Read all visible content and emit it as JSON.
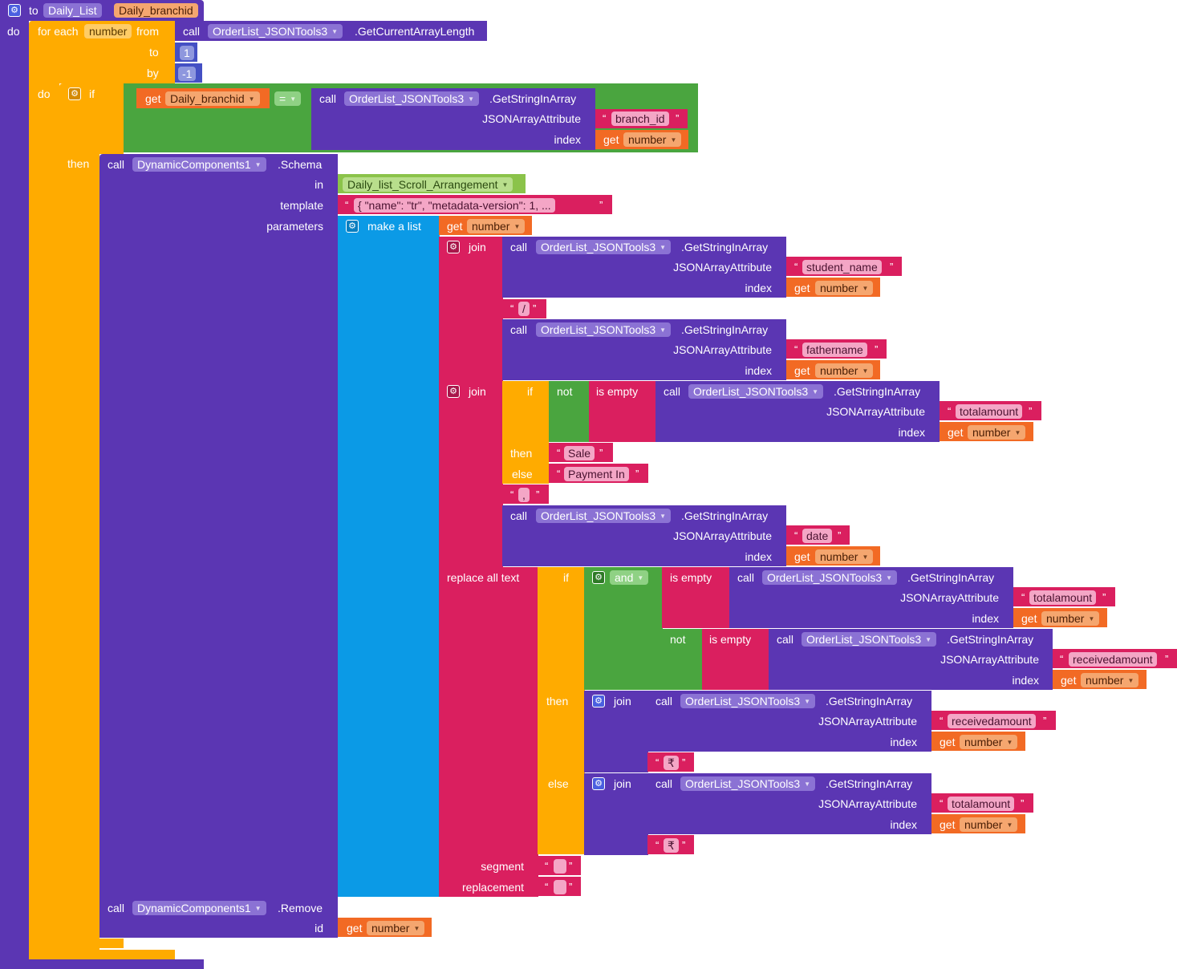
{
  "colors": {
    "procedure": "#5b36b3",
    "control": "#ffab00",
    "logic": "#4aa53f",
    "text": "#da1f5f",
    "variable": "#f26a24",
    "lists": "#0b9ae6",
    "math": "#4450c4",
    "component": "#5e35b1",
    "layout": "#8bc34a"
  },
  "procedure": {
    "keyword_to": "to",
    "name": "Daily_List",
    "param": "Daily_branchid",
    "keyword_do": "do"
  },
  "for_each": {
    "label": "for each",
    "var": "number",
    "from_label": "from",
    "to_label": "to",
    "by_label": "by",
    "do_label": "do",
    "to_value": "1",
    "by_value": "-1",
    "from_call": {
      "call": "call",
      "component": "OrderList_JSONTools3",
      "method": ".GetCurrentArrayLength"
    }
  },
  "if_block": {
    "if_label": "if",
    "then_label": "then",
    "get": "get",
    "var": "Daily_branchid",
    "op": "=",
    "call": {
      "call": "call",
      "component": "OrderList_JSONTools3",
      "method": ".GetStringInArray",
      "attr_label": "JSONArrayAttribute",
      "index_label": "index",
      "attr": "branch_id",
      "index_get": "get",
      "index_var": "number"
    }
  },
  "schema": {
    "call": "call",
    "component": "DynamicComponents1",
    "method": ".Schema",
    "in_label": "in",
    "in_value": "Daily_list_Scroll_Arrangement",
    "template_label": "template",
    "template_value": "{     \"name\": \"tr\",     \"metadata-version\": 1,  ...",
    "parameters_label": "parameters",
    "make_list": "make a list",
    "param_get": "get",
    "param_var": "number"
  },
  "join1": {
    "label": "join",
    "call1": {
      "call": "call",
      "component": "OrderList_JSONTools3",
      "method": ".GetStringInArray",
      "attr_label": "JSONArrayAttribute",
      "index_label": "index",
      "attr": "student_name",
      "index_get": "get",
      "index_var": "number"
    },
    "sep": "/",
    "call2": {
      "call": "call",
      "component": "OrderList_JSONTools3",
      "method": ".GetStringInArray",
      "attr_label": "JSONArrayAttribute",
      "index_label": "index",
      "attr": "fathername",
      "index_get": "get",
      "index_var": "number"
    }
  },
  "join2": {
    "label": "join",
    "if_label": "if",
    "not_label": "not",
    "is_empty_label": "is empty",
    "then_label": "then",
    "else_label": "else",
    "call": {
      "call": "call",
      "component": "OrderList_JSONTools3",
      "method": ".GetStringInArray",
      "attr_label": "JSONArrayAttribute",
      "index_label": "index",
      "attr": "totalamount",
      "index_get": "get",
      "index_var": "number"
    },
    "then_value": "Sale",
    "else_value": "Payment In",
    "sep": ",",
    "call2": {
      "call": "call",
      "component": "OrderList_JSONTools3",
      "method": ".GetStringInArray",
      "attr_label": "JSONArrayAttribute",
      "index_label": "index",
      "attr": "date",
      "index_get": "get",
      "index_var": "number"
    }
  },
  "replace": {
    "label": "replace all text",
    "if_label": "if",
    "and_label": "and",
    "is_empty_label": "is empty",
    "not_label": "not",
    "then_label": "then",
    "else_label": "else",
    "join_label": "join",
    "segment_label": "segment",
    "replacement_label": "replacement",
    "segment_value": " ",
    "replacement_value": " ",
    "rupee": "₹",
    "call_a": {
      "call": "call",
      "component": "OrderList_JSONTools3",
      "method": ".GetStringInArray",
      "attr_label": "JSONArrayAttribute",
      "index_label": "index",
      "attr": "totalamount",
      "index_get": "get",
      "index_var": "number"
    },
    "call_b": {
      "call": "call",
      "component": "OrderList_JSONTools3",
      "method": ".GetStringInArray",
      "attr_label": "JSONArrayAttribute",
      "index_label": "index",
      "attr": "receivedamount",
      "index_get": "get",
      "index_var": "number"
    },
    "call_c": {
      "call": "call",
      "component": "OrderList_JSONTools3",
      "method": ".GetStringInArray",
      "attr_label": "JSONArrayAttribute",
      "index_label": "index",
      "attr": "receivedamount",
      "index_get": "get",
      "index_var": "number"
    },
    "call_d": {
      "call": "call",
      "component": "OrderList_JSONTools3",
      "method": ".GetStringInArray",
      "attr_label": "JSONArrayAttribute",
      "index_label": "index",
      "attr": "totalamount",
      "index_get": "get",
      "index_var": "number"
    }
  },
  "remove": {
    "call": "call",
    "component": "DynamicComponents1",
    "method": ".Remove",
    "id_label": "id",
    "get": "get",
    "var": "number"
  },
  "quote_open": "“",
  "quote_close": "”"
}
